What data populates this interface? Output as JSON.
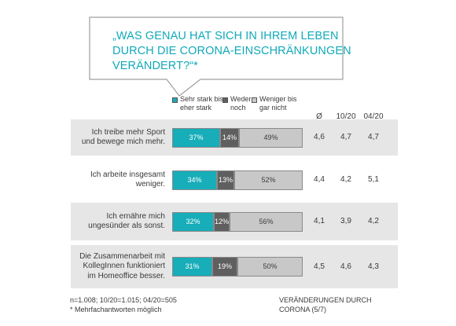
{
  "question": {
    "lines": [
      "„WAS GENAU HAT SICH IN IHREM LEBEN",
      "DURCH DIE CORONA-EINSCHRÄNKUNGEN",
      "VERÄNDERT?“*"
    ],
    "color": "#11a9b9"
  },
  "legend": [
    {
      "label_lines": [
        "Sehr stark bis",
        "eher stark"
      ],
      "color": "#17adb9"
    },
    {
      "label_lines": [
        "Weder",
        "noch"
      ],
      "color": "#5f5f5f"
    },
    {
      "label_lines": [
        "Weniger bis",
        "gar nicht"
      ],
      "color": "#c8c8c8"
    }
  ],
  "column_headers": [
    "Ø",
    "10/20",
    "04/20"
  ],
  "chart_data": {
    "type": "bar",
    "stacked": true,
    "orientation": "horizontal",
    "value_unit": "%",
    "categories": [
      "Ich treibe mehr Sport und bewege mich mehr.",
      "Ich arbeite insgesamt weniger.",
      "Ich ernähre mich ungesünder als sonst.",
      "Die Zusammenarbeit mit KollegInnen funktioniert im Homeoffice besser."
    ],
    "category_lines": [
      [
        "Ich treibe mehr Sport",
        "und bewege mich mehr."
      ],
      [
        "Ich arbeite insgesamt",
        "weniger."
      ],
      [
        "Ich ernähre mich",
        "ungesünder als sonst."
      ],
      [
        "Die Zusammenarbeit mit",
        "KollegInnen funktioniert",
        "im Homeoffice besser."
      ]
    ],
    "series": [
      {
        "name": "Sehr stark bis eher stark",
        "values": [
          37,
          34,
          32,
          31
        ],
        "color": "#17adb9"
      },
      {
        "name": "Weder noch",
        "values": [
          14,
          13,
          12,
          19
        ],
        "color": "#5f5f5f"
      },
      {
        "name": "Weniger bis gar nicht",
        "values": [
          49,
          52,
          56,
          50
        ],
        "color": "#c8c8c8"
      }
    ],
    "table": {
      "columns": [
        "Ø",
        "10/20",
        "04/20"
      ],
      "rows": [
        [
          "4,6",
          "4,7",
          "4,7"
        ],
        [
          "4,4",
          "4,2",
          "5,1"
        ],
        [
          "4,1",
          "3,9",
          "4,2"
        ],
        [
          "4,5",
          "4,6",
          "4,3"
        ]
      ]
    },
    "row_shading": [
      "#e6e6e6",
      "#ffffff",
      "#e6e6e6",
      "#e6e6e6"
    ]
  },
  "footer": {
    "sample": "n=1.008;  10/20=1.015;  04/20=505",
    "note": "* Mehrfachantworten  möglich",
    "scale_lines": [
      "VERÄNDERUNGEN  DURCH",
      "CORONA (5/7)"
    ]
  }
}
